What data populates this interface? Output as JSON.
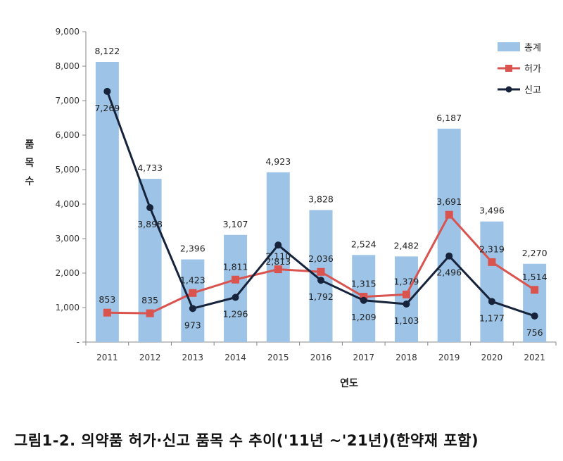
{
  "chart_data": {
    "type": "bar+line",
    "categories": [
      "2011",
      "2012",
      "2013",
      "2014",
      "2015",
      "2016",
      "2017",
      "2018",
      "2019",
      "2020",
      "2021"
    ],
    "series": [
      {
        "name": "총계",
        "kind": "bar",
        "color": "#9dc3e6",
        "values": [
          8122,
          4733,
          2396,
          3107,
          4923,
          3828,
          2524,
          2482,
          6187,
          3496,
          2270
        ],
        "labels": [
          "8,122",
          "4,733",
          "2,396",
          "3,107",
          "4,923",
          "3,828",
          "2,524",
          "2,482",
          "6,187",
          "3,496",
          "2,270"
        ]
      },
      {
        "name": "허가",
        "kind": "line",
        "color": "#d9534f",
        "marker": "square",
        "values": [
          853,
          835,
          1423,
          1811,
          2110,
          2036,
          1315,
          1379,
          3691,
          2319,
          1514
        ],
        "labels": [
          "853",
          "835",
          "1,423",
          "1,811",
          "2,110",
          "2,036",
          "1,315",
          "1,379",
          "3,691",
          "2,319",
          "1,514"
        ]
      },
      {
        "name": "신고",
        "kind": "line",
        "color": "#16233b",
        "marker": "circle",
        "values": [
          7269,
          3898,
          973,
          1296,
          2813,
          1792,
          1209,
          1103,
          2496,
          1177,
          756
        ],
        "labels": [
          "7,269",
          "3,898",
          "973",
          "1,296",
          "2,813",
          "1,792",
          "1,209",
          "1,103",
          "2,496",
          "1,177",
          "756"
        ]
      }
    ],
    "ylabel": "품목 수",
    "xlabel": "연도",
    "ylim": [
      0,
      9000
    ],
    "yticks": [
      0,
      1000,
      2000,
      3000,
      4000,
      5000,
      6000,
      7000,
      8000,
      9000
    ],
    "ytick_labels": [
      "-",
      "1,000",
      "2,000",
      "3,000",
      "4,000",
      "5,000",
      "6,000",
      "7,000",
      "8,000",
      "9,000"
    ],
    "legend_position": "top-right",
    "grid": false
  },
  "caption": "그림1-2. 의약품 허가·신고 품목 수 추이('11년 ~'21년)(한약재 포함)"
}
